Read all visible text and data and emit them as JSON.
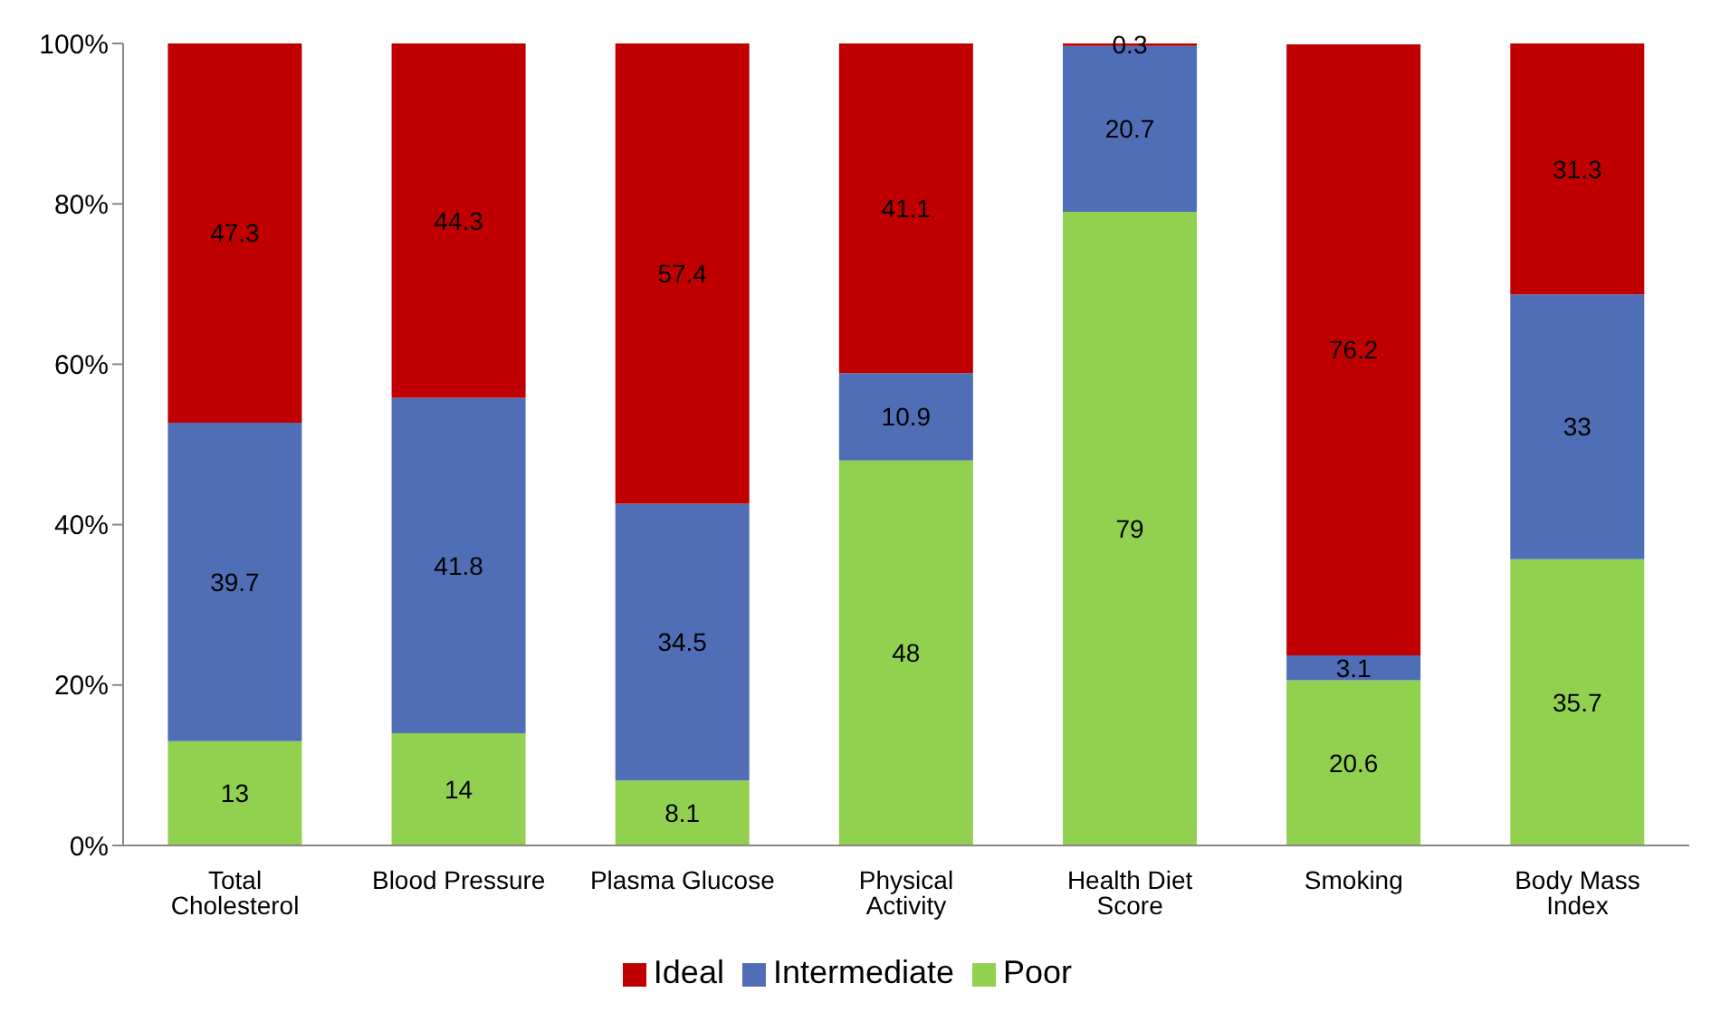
{
  "chart_data": {
    "type": "bar",
    "stacked": true,
    "categories": [
      "Total Cholesterol",
      "Blood Pressure",
      "Plasma Glucose",
      "Physical Activity",
      "Health Diet Score",
      "Smoking",
      "Body Mass Index"
    ],
    "series": [
      {
        "name": "Poor",
        "color": "#92d050",
        "values": [
          13,
          14,
          8.1,
          48,
          79,
          20.6,
          35.7
        ]
      },
      {
        "name": "Intermediate",
        "color": "#4f6eb5",
        "values": [
          39.7,
          41.8,
          34.5,
          10.9,
          20.7,
          3.1,
          33
        ]
      },
      {
        "name": "Ideal",
        "color": "#c00000",
        "values": [
          47.3,
          44.3,
          57.4,
          41.1,
          0.3,
          76.2,
          31.3
        ]
      }
    ],
    "ylim": [
      0,
      100
    ],
    "yticks": [
      {
        "value": 0,
        "label": "0%"
      },
      {
        "value": 20,
        "label": "20%"
      },
      {
        "value": 40,
        "label": "40%"
      },
      {
        "value": 60,
        "label": "60%"
      },
      {
        "value": 80,
        "label": "80%"
      },
      {
        "value": 100,
        "label": "100%"
      }
    ],
    "data_labels": true,
    "legend": "bottom",
    "grid": false
  }
}
